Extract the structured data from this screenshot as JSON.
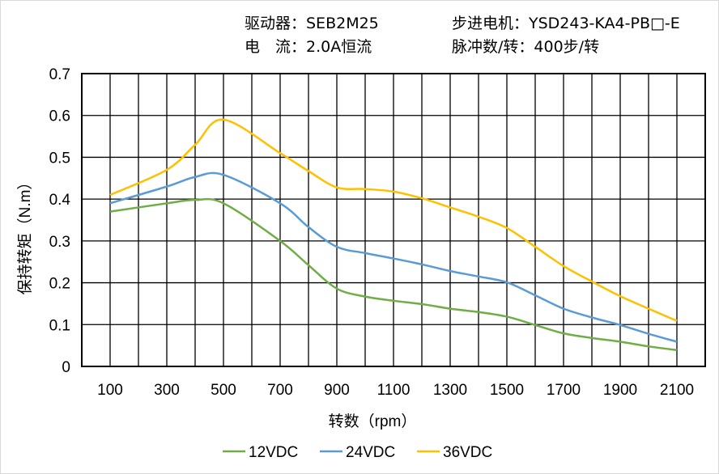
{
  "header": {
    "driver": "驱动器：SEB2M25",
    "motor": "步进电机：YSD243-KA4-PB□-E",
    "current": "电　流：2.0A恒流",
    "pulses": "脉冲数/转：400步/转"
  },
  "chart_data": {
    "type": "line",
    "title": "",
    "xlabel": "转数（rpm）",
    "ylabel": "保持转矩（N.m）",
    "xlim": [
      0,
      2200
    ],
    "ylim": [
      0,
      0.7
    ],
    "xticks": [
      "100",
      "300",
      "500",
      "700",
      "900",
      "1100",
      "1300",
      "1500",
      "1700",
      "1900",
      "2100"
    ],
    "yticks": [
      "0",
      "0.1",
      "0.2",
      "0.3",
      "0.4",
      "0.5",
      "0.6",
      "0.7"
    ],
    "grid": true,
    "legend": "bottom",
    "x": [
      100,
      300,
      400,
      500,
      700,
      800,
      900,
      1000,
      1100,
      1200,
      1300,
      1400,
      1500,
      1600,
      1700,
      1800,
      1900,
      2000,
      2100
    ],
    "series": [
      {
        "name": "12VDC",
        "color": "#70ad47",
        "values": [
          0.37,
          0.39,
          0.398,
          0.39,
          0.3,
          0.242,
          0.186,
          0.167,
          0.157,
          0.149,
          0.138,
          0.13,
          0.119,
          0.099,
          0.079,
          0.068,
          0.059,
          0.048,
          0.039
        ]
      },
      {
        "name": "24VDC",
        "color": "#5b9bd5",
        "values": [
          0.39,
          0.43,
          0.453,
          0.458,
          0.39,
          0.333,
          0.286,
          0.271,
          0.258,
          0.244,
          0.228,
          0.215,
          0.201,
          0.17,
          0.138,
          0.117,
          0.099,
          0.078,
          0.059
        ]
      },
      {
        "name": "36VDC",
        "color": "#ffc000",
        "values": [
          0.41,
          0.47,
          0.53,
          0.59,
          0.51,
          0.467,
          0.428,
          0.424,
          0.418,
          0.402,
          0.38,
          0.358,
          0.331,
          0.286,
          0.24,
          0.203,
          0.168,
          0.138,
          0.109
        ]
      }
    ]
  }
}
